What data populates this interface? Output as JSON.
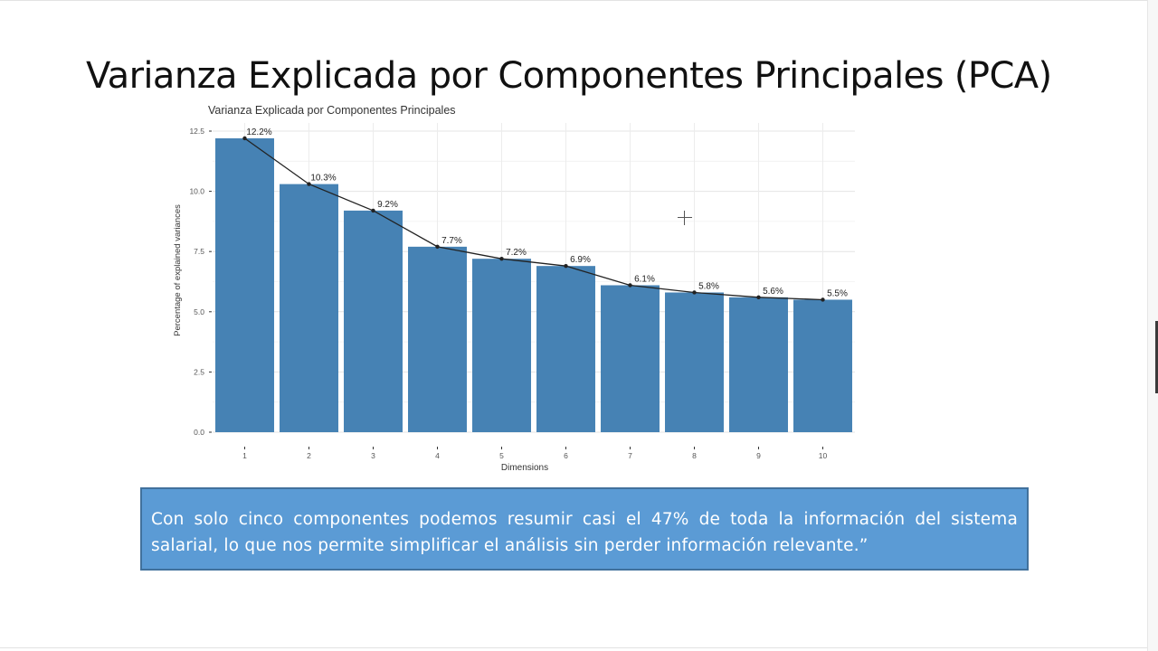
{
  "slide": {
    "title": "Varianza Explicada por Componentes Principales (PCA)",
    "callout_text": "Con solo cinco componentes podemos resumir casi el 47% de toda la información del sistema salarial, lo que nos permite simplificar el análisis sin perder información relevante.”"
  },
  "colors": {
    "bar": "#4682b4",
    "line": "#222222",
    "callout_bg": "#5b9bd5",
    "callout_border": "#41719c"
  },
  "chart_data": {
    "type": "bar",
    "title": "Varianza Explicada por Componentes Principales",
    "xlabel": "Dimensions",
    "ylabel": "Percentage of explained variances",
    "categories": [
      "1",
      "2",
      "3",
      "4",
      "5",
      "6",
      "7",
      "8",
      "9",
      "10"
    ],
    "values": [
      12.2,
      10.3,
      9.2,
      7.7,
      7.2,
      6.9,
      6.1,
      5.8,
      5.6,
      5.5
    ],
    "labels": [
      "12.2%",
      "10.3%",
      "9.2%",
      "7.7%",
      "7.2%",
      "6.9%",
      "6.1%",
      "5.8%",
      "5.6%",
      "5.5%"
    ],
    "yticks": [
      "0.0",
      "2.5",
      "5.0",
      "7.5",
      "10.0",
      "12.5"
    ],
    "ylim": [
      0,
      12.5
    ],
    "grid": true,
    "overlay_line": true
  }
}
